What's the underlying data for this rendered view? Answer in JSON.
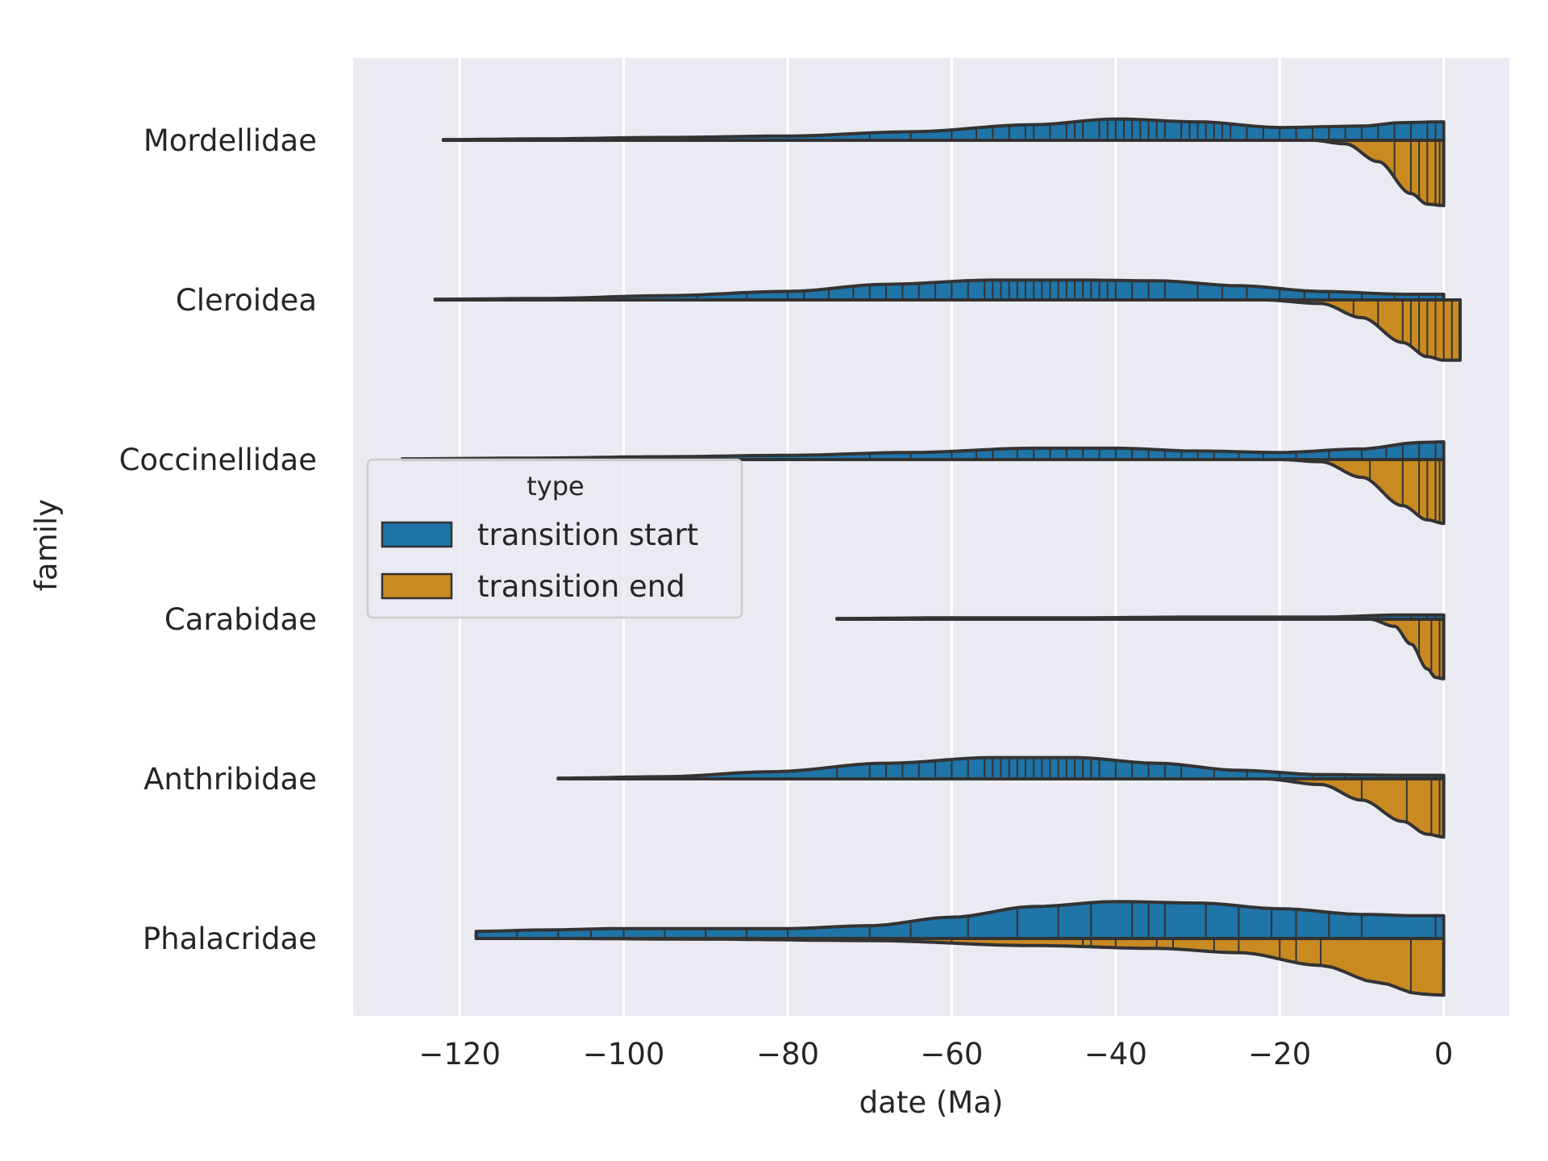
{
  "chart_data": {
    "type": "violin",
    "xlabel": "date (Ma)",
    "ylabel": "family",
    "xlim": [
      -133,
      8
    ],
    "x_ticks": [
      -120,
      -100,
      -80,
      -60,
      -40,
      -20,
      0
    ],
    "x_tick_labels": [
      "−120",
      "−100",
      "−80",
      "−60",
      "−40",
      "−20",
      "0"
    ],
    "grid": true,
    "background": "#eaeaf2",
    "categories": [
      "Mordellidae",
      "Cleroidea",
      "Coccinellidae",
      "Carabidae",
      "Anthribidae",
      "Phalacridae"
    ],
    "legend": {
      "title": "type",
      "placement": "center-left",
      "entries": [
        {
          "label": "transition start",
          "color": "#1f74a8"
        },
        {
          "label": "transition end",
          "color": "#c98a22"
        }
      ]
    },
    "series": [
      {
        "name": "transition start",
        "color": "#1f74a8",
        "side": "upper",
        "violins": [
          {
            "family": "Mordellidae",
            "range": [
              -122,
              0
            ],
            "density": [
              [
                -122,
                0.01
              ],
              [
                -110,
                0.02
              ],
              [
                -95,
                0.04
              ],
              [
                -80,
                0.06
              ],
              [
                -65,
                0.12
              ],
              [
                -50,
                0.22
              ],
              [
                -40,
                0.3
              ],
              [
                -30,
                0.26
              ],
              [
                -20,
                0.18
              ],
              [
                -10,
                0.2
              ],
              [
                -5,
                0.25
              ],
              [
                0,
                0.26
              ]
            ],
            "obs": [
              -91,
              -70,
              -65,
              -60,
              -57,
              -55,
              -53,
              -51,
              -50,
              -48,
              -46,
              -45,
              -44,
              -42,
              -41,
              -40,
              -39,
              -38,
              -37,
              -36,
              -35,
              -34,
              -32,
              -31,
              -30,
              -29,
              -28,
              -27,
              -26,
              -24,
              -22,
              -20,
              -18,
              -16,
              -14,
              -12,
              -10,
              -8,
              -6,
              -4,
              -2,
              -1
            ]
          },
          {
            "family": "Cleroidea",
            "range": [
              -123,
              0
            ],
            "density": [
              [
                -123,
                0.01
              ],
              [
                -110,
                0.02
              ],
              [
                -95,
                0.06
              ],
              [
                -80,
                0.12
              ],
              [
                -68,
                0.22
              ],
              [
                -55,
                0.28
              ],
              [
                -45,
                0.28
              ],
              [
                -35,
                0.27
              ],
              [
                -25,
                0.2
              ],
              [
                -15,
                0.12
              ],
              [
                -5,
                0.08
              ],
              [
                0,
                0.08
              ]
            ],
            "obs": [
              -91,
              -85,
              -80,
              -78,
              -75,
              -72,
              -70,
              -68,
              -66,
              -64,
              -62,
              -60,
              -58,
              -56,
              -55,
              -54,
              -53,
              -52,
              -51,
              -50,
              -49,
              -48,
              -47,
              -46,
              -45,
              -44,
              -43,
              -42,
              -41,
              -40,
              -38,
              -36,
              -34,
              -30,
              -27,
              -24,
              -20,
              -17,
              -14,
              -10,
              -6,
              -3,
              -1
            ]
          },
          {
            "family": "Coccinellidae",
            "range": [
              -127,
              0
            ],
            "density": [
              [
                -127,
                0.01
              ],
              [
                -112,
                0.02
              ],
              [
                -95,
                0.04
              ],
              [
                -80,
                0.06
              ],
              [
                -65,
                0.1
              ],
              [
                -50,
                0.16
              ],
              [
                -40,
                0.16
              ],
              [
                -30,
                0.12
              ],
              [
                -20,
                0.1
              ],
              [
                -10,
                0.15
              ],
              [
                -3,
                0.24
              ],
              [
                0,
                0.25
              ]
            ],
            "obs": [
              -70,
              -65,
              -60,
              -57,
              -55,
              -52,
              -50,
              -48,
              -46,
              -44,
              -42,
              -40,
              -38,
              -36,
              -34,
              -32,
              -30,
              -28,
              -25,
              -22,
              -18,
              -14,
              -10,
              -7,
              -5,
              -3,
              -1
            ]
          },
          {
            "family": "Carabidae",
            "range": [
              -74,
              0
            ],
            "density": [
              [
                -74,
                0.01
              ],
              [
                -60,
                0.02
              ],
              [
                -45,
                0.02
              ],
              [
                -30,
                0.03
              ],
              [
                -15,
                0.03
              ],
              [
                -5,
                0.06
              ],
              [
                0,
                0.06
              ]
            ],
            "obs": [
              -36,
              -8,
              -4,
              -2,
              -1
            ]
          },
          {
            "family": "Anthribidae",
            "range": [
              -108,
              0
            ],
            "density": [
              [
                -108,
                0.01
              ],
              [
                -95,
                0.03
              ],
              [
                -82,
                0.1
              ],
              [
                -68,
                0.22
              ],
              [
                -55,
                0.3
              ],
              [
                -45,
                0.3
              ],
              [
                -35,
                0.22
              ],
              [
                -25,
                0.12
              ],
              [
                -15,
                0.06
              ],
              [
                -5,
                0.05
              ],
              [
                0,
                0.05
              ]
            ],
            "obs": [
              -104,
              -74,
              -70,
              -68,
              -66,
              -64,
              -62,
              -60,
              -58,
              -56,
              -55,
              -54,
              -53,
              -52,
              -51,
              -50,
              -49,
              -48,
              -47,
              -46,
              -45,
              -44,
              -43,
              -42,
              -40,
              -38,
              -36,
              -34,
              -32,
              -28,
              -24,
              -20,
              -16,
              -12,
              -8,
              -4,
              -2,
              -1
            ]
          },
          {
            "family": "Phalacridae",
            "range": [
              -118,
              0
            ],
            "density": [
              [
                -118,
                0.1
              ],
              [
                -110,
                0.12
              ],
              [
                -100,
                0.14
              ],
              [
                -90,
                0.14
              ],
              [
                -80,
                0.14
              ],
              [
                -70,
                0.18
              ],
              [
                -60,
                0.3
              ],
              [
                -50,
                0.45
              ],
              [
                -40,
                0.52
              ],
              [
                -30,
                0.5
              ],
              [
                -20,
                0.42
              ],
              [
                -10,
                0.34
              ],
              [
                -3,
                0.32
              ],
              [
                0,
                0.32
              ]
            ],
            "obs": [
              -118,
              -113,
              -108,
              -104,
              -100,
              -95,
              -90,
              -85,
              -80,
              -70,
              -65,
              -58,
              -52,
              -47,
              -43,
              -38,
              -36,
              -34,
              -29,
              -25,
              -21,
              -18,
              -14,
              -10,
              -1
            ]
          }
        ]
      },
      {
        "name": "transition end",
        "color": "#c98a22",
        "side": "lower",
        "violins": [
          {
            "family": "Mordellidae",
            "range": [
              -16,
              0
            ],
            "density": [
              [
                -16,
                0.0
              ],
              [
                -12,
                0.05
              ],
              [
                -8,
                0.3
              ],
              [
                -4,
                0.75
              ],
              [
                -2,
                0.9
              ],
              [
                0,
                0.92
              ]
            ],
            "obs": [
              -13,
              -6,
              -4,
              -3,
              -2,
              -1,
              -0.5
            ]
          },
          {
            "family": "Cleroidea",
            "range": [
              -22,
              2
            ],
            "density": [
              [
                -22,
                0.0
              ],
              [
                -15,
                0.05
              ],
              [
                -10,
                0.25
              ],
              [
                -5,
                0.6
              ],
              [
                -2,
                0.8
              ],
              [
                0,
                0.85
              ],
              [
                2,
                0.85
              ]
            ],
            "obs": [
              -18,
              -11,
              -8,
              -5,
              -4,
              -3,
              -2,
              -1,
              0,
              1
            ]
          },
          {
            "family": "Coccinellidae",
            "range": [
              -20,
              0
            ],
            "density": [
              [
                -20,
                0.0
              ],
              [
                -15,
                0.03
              ],
              [
                -10,
                0.25
              ],
              [
                -5,
                0.65
              ],
              [
                -2,
                0.85
              ],
              [
                0,
                0.9
              ]
            ],
            "obs": [
              -16,
              -9,
              -5,
              -3,
              -2,
              -1,
              -0.5
            ]
          },
          {
            "family": "Carabidae",
            "range": [
              -9,
              0
            ],
            "density": [
              [
                -9,
                0.0
              ],
              [
                -6,
                0.1
              ],
              [
                -4,
                0.35
              ],
              [
                -2,
                0.7
              ],
              [
                -1,
                0.82
              ],
              [
                0,
                0.84
              ]
            ],
            "obs": [
              -3,
              -1.5,
              -0.5
            ]
          },
          {
            "family": "Anthribidae",
            "range": [
              -22,
              0
            ],
            "density": [
              [
                -22,
                0.0
              ],
              [
                -15,
                0.08
              ],
              [
                -10,
                0.3
              ],
              [
                -5,
                0.6
              ],
              [
                -2,
                0.78
              ],
              [
                0,
                0.82
              ]
            ],
            "obs": [
              -10,
              -4.5,
              -1.5,
              -0.5
            ]
          },
          {
            "family": "Phalacridae",
            "range": [
              -108,
              0
            ],
            "density": [
              [
                -108,
                0.0
              ],
              [
                -90,
                0.01
              ],
              [
                -70,
                0.03
              ],
              [
                -50,
                0.1
              ],
              [
                -35,
                0.14
              ],
              [
                -25,
                0.2
              ],
              [
                -15,
                0.38
              ],
              [
                -8,
                0.62
              ],
              [
                -3,
                0.78
              ],
              [
                0,
                0.8
              ]
            ],
            "obs": [
              -108,
              -80,
              -60,
              -44,
              -43,
              -40,
              -35,
              -33,
              -28,
              -25,
              -20,
              -18,
              -15,
              -4
            ]
          }
        ]
      }
    ]
  }
}
